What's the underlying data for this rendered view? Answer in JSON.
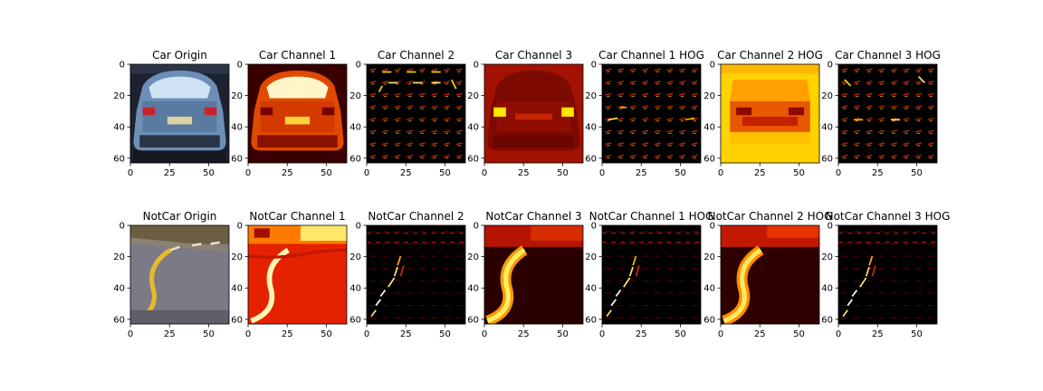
{
  "figure": {
    "panels": [
      {
        "title": "Car Origin",
        "image": "car-photo",
        "row": 0,
        "col": 0
      },
      {
        "title": "Car Channel 1",
        "image": "car-channel-1",
        "row": 0,
        "col": 1
      },
      {
        "title": "Car Channel 2",
        "image": "car-channel-2",
        "row": 0,
        "col": 2
      },
      {
        "title": "Car Channel 3",
        "image": "car-channel-3",
        "row": 0,
        "col": 3
      },
      {
        "title": "Car Channel 1 HOG",
        "image": "car-channel-1-hog",
        "row": 0,
        "col": 4
      },
      {
        "title": "Car Channel 2 HOG",
        "image": "car-channel-2-hog",
        "row": 0,
        "col": 5
      },
      {
        "title": "Car Channel 3 HOG",
        "image": "car-channel-3-hog",
        "row": 0,
        "col": 6
      },
      {
        "title": "NotCar Origin",
        "image": "road-photo",
        "row": 1,
        "col": 0
      },
      {
        "title": "NotCar Channel 1",
        "image": "notcar-channel-1",
        "row": 1,
        "col": 1
      },
      {
        "title": "NotCar Channel 2",
        "image": "notcar-channel-2",
        "row": 1,
        "col": 2
      },
      {
        "title": "NotCar Channel 3",
        "image": "notcar-channel-3",
        "row": 1,
        "col": 3
      },
      {
        "title": "NotCar Channel 1 HOG",
        "image": "notcar-channel-1-hog",
        "row": 1,
        "col": 4
      },
      {
        "title": "NotCar Channel 2 HOG",
        "image": "notcar-channel-2-hog",
        "row": 1,
        "col": 5
      },
      {
        "title": "NotCar Channel 3 HOG",
        "image": "notcar-channel-3-hog",
        "row": 1,
        "col": 6
      }
    ],
    "colormap": "hot",
    "colors": {
      "hot_dark": "#000000",
      "hot_red": "#cc0000",
      "hot_orange": "#ff6600",
      "hot_yellow": "#ffee00",
      "hot_white": "#ffffff"
    }
  },
  "chart_data": {
    "type": "heatmap",
    "image_size": [
      64,
      64
    ],
    "xlim": [
      0,
      63
    ],
    "ylim": [
      63,
      0
    ],
    "xticks": [
      0,
      25,
      50
    ],
    "yticks": [
      0,
      20,
      40,
      60
    ],
    "xtick_labels": [
      "0",
      "25",
      "50"
    ],
    "ytick_labels": [
      "0",
      "20",
      "40",
      "60"
    ],
    "grid": false
  }
}
